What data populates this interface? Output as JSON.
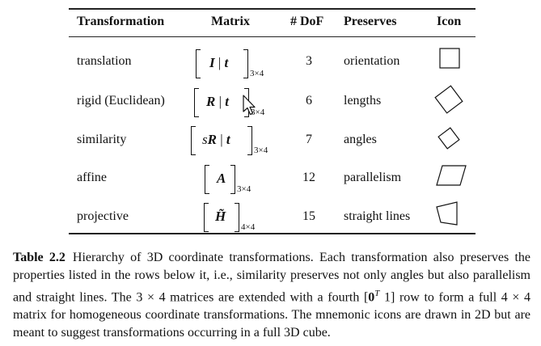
{
  "table": {
    "headers": {
      "transformation": "Transformation",
      "matrix": "Matrix",
      "dof": "# DoF",
      "preserves": "Preserves",
      "icon": "Icon"
    },
    "rows": [
      {
        "name": "translation",
        "matrix": {
          "prefix": "",
          "a": "I",
          "b": "t",
          "sub": "3×4"
        },
        "dof": "3",
        "preserves": "orientation",
        "icon": "square-icon"
      },
      {
        "name": "rigid (Euclidean)",
        "matrix": {
          "prefix": "",
          "a": "R",
          "b": "t",
          "sub": "3×4"
        },
        "dof": "6",
        "preserves": "lengths",
        "icon": "rotated-square-icon"
      },
      {
        "name": "similarity",
        "matrix": {
          "prefix": "s",
          "a": "R",
          "b": "t",
          "sub": "3×4"
        },
        "dof": "7",
        "preserves": "angles",
        "icon": "small-rotated-square-icon"
      },
      {
        "name": "affine",
        "matrix": {
          "prefix": "",
          "a": "A",
          "b": "",
          "sub": "3×4"
        },
        "dof": "12",
        "preserves": "parallelism",
        "icon": "parallelogram-icon"
      },
      {
        "name": "projective",
        "matrix": {
          "prefix": "",
          "a": "H̃",
          "b": "",
          "sub": "4×4"
        },
        "dof": "15",
        "preserves": "straight lines",
        "icon": "trapezoid-icon"
      }
    ]
  },
  "caption": {
    "label": "Table 2.2",
    "text_before": "Hierarchy of 3D coordinate transformations. Each transformation also preserves the properties listed in the rows below it, i.e., similarity preserves not only angles but also parallelism and straight lines. The 3 × 4 matrices are extended with a fourth [",
    "vector": "0",
    "vector_sup": "T",
    "text_one": "1",
    "text_after": "] row to form a full 4 × 4 matrix for homogeneous coordinate transformations. The mnemonic icons are drawn in 2D but are meant to suggest transformations occurring in a full 3D cube."
  }
}
